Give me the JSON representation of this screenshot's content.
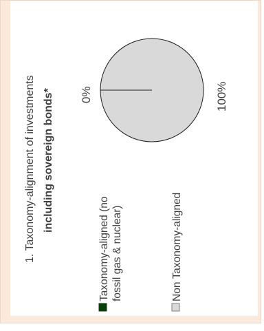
{
  "chart_data": {
    "type": "pie",
    "title_line1": "1. Taxonomy-alignment of investments",
    "title_line2": "including sovereign bonds*",
    "slices": [
      {
        "name": "Taxonomy-aligned (no fossil gas & nuclear)",
        "legend_line1": "Taxonomy-aligned (no",
        "legend_line2": "fossil gas & nuclear)",
        "value": 0,
        "label": "0%",
        "color": "#0b3d0b"
      },
      {
        "name": "Non Taxonomy-aligned",
        "legend_line1": "Non Taxonomy-aligned",
        "value": 100,
        "label": "100%",
        "color": "#d9d9d9"
      }
    ],
    "legend_position": "bottom"
  }
}
